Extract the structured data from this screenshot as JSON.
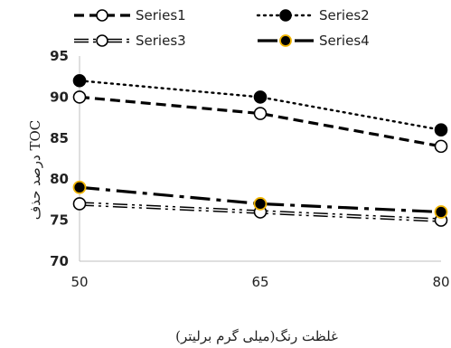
{
  "chart_data": {
    "type": "line",
    "title": "",
    "xlabel": "غلظت رنگ(میلی گرم برلیتر)",
    "ylabel": "درصد حذف TOC",
    "x": [
      "50",
      "65",
      "80"
    ],
    "ylim": [
      70,
      95
    ],
    "yticks": [
      "70",
      "75",
      "80",
      "85",
      "90",
      "95"
    ],
    "grid": false,
    "legend_position": "top",
    "series": [
      {
        "name": "Series1",
        "values": [
          90,
          88,
          84
        ],
        "color": "#000000",
        "line": "dash",
        "marker": "open-circle"
      },
      {
        "name": "Series2",
        "values": [
          92,
          90,
          86
        ],
        "color": "#000000",
        "line": "dot",
        "marker": "filled-circle"
      },
      {
        "name": "Series3",
        "values": [
          77,
          76,
          75
        ],
        "color": "#000000",
        "line": "double-dash-dot-dot",
        "marker": "open-circle"
      },
      {
        "name": "Series4",
        "values": [
          79,
          77,
          76
        ],
        "color": "#000000",
        "line": "long-dash-dot",
        "marker": "filled-circle-gold-edge"
      }
    ],
    "marker_edge_highlight": "#f0b400"
  }
}
